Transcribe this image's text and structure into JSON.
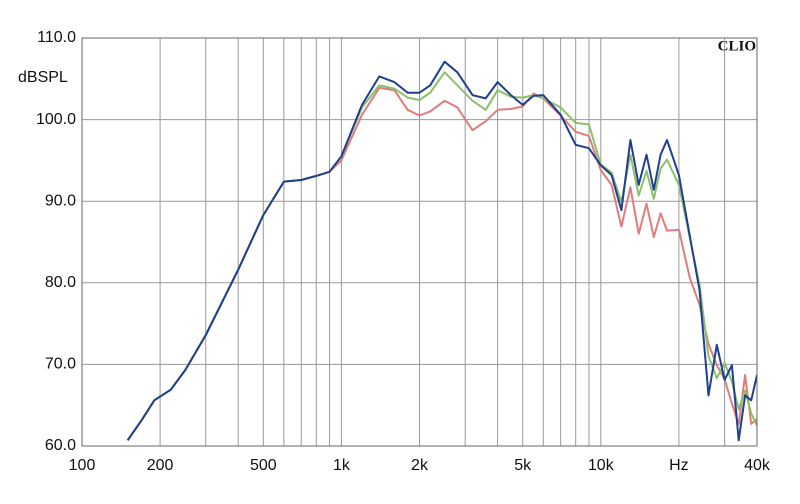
{
  "chart_data": {
    "type": "line",
    "ylabel": "dBSPL",
    "brand": "CLIO",
    "x": [
      150,
      170,
      190,
      220,
      250,
      300,
      400,
      500,
      600,
      700,
      800,
      900,
      1000,
      1200,
      1400,
      1600,
      1800,
      2000,
      2200,
      2500,
      2800,
      3200,
      3600,
      4000,
      4500,
      5000,
      5500,
      6000,
      7000,
      8000,
      9000,
      10000,
      11000,
      12000,
      13000,
      14000,
      15000,
      16000,
      17000,
      18000,
      20000,
      22000,
      24000,
      26000,
      28000,
      30000,
      32000,
      34000,
      36000,
      38000,
      40000
    ],
    "series": [
      {
        "color": "#e07c7c",
        "values": [
          60.7,
          63.2,
          65.6,
          66.9,
          69.3,
          73.6,
          81.6,
          88.3,
          92.4,
          92.6,
          93.1,
          93.6,
          95,
          100.6,
          103.9,
          103.6,
          101.2,
          100.5,
          101,
          102.3,
          101.5,
          98.7,
          99.8,
          101.2,
          101.3,
          101.6,
          103.2,
          102.6,
          100.5,
          98.5,
          98,
          93.8,
          92,
          86.9,
          91.7,
          86,
          89.7,
          85.6,
          88.5,
          86.4,
          86.5,
          80.7,
          77.3,
          72.5,
          69.9,
          68.2,
          65.2,
          62.7,
          68.7,
          62.7,
          63.3
        ]
      },
      {
        "color": "#8cbf6a",
        "values": [
          60.7,
          63.2,
          65.6,
          66.9,
          69.3,
          73.6,
          81.6,
          88.3,
          92.4,
          92.6,
          93.1,
          93.6,
          95.5,
          101.5,
          104.2,
          103.8,
          102.7,
          102.4,
          103.3,
          105.8,
          104.2,
          102.3,
          101.2,
          103.6,
          102.8,
          102.7,
          103,
          102.6,
          101.5,
          99.6,
          99.4,
          94.5,
          93.5,
          89.9,
          95.7,
          90.7,
          93.7,
          90.3,
          94,
          95.1,
          92,
          85.6,
          79.8,
          71,
          68.3,
          70.2,
          67.9,
          64.5,
          66.8,
          64,
          62.5
        ]
      },
      {
        "color": "#1f3f8f",
        "values": [
          60.7,
          63.2,
          65.6,
          66.9,
          69.3,
          73.6,
          81.6,
          88.3,
          92.4,
          92.6,
          93.1,
          93.6,
          95.5,
          101.8,
          105.3,
          104.6,
          103.3,
          103.3,
          104.2,
          107.1,
          105.8,
          103,
          102.6,
          104.6,
          103,
          101.8,
          102.9,
          103,
          100.6,
          96.9,
          96.5,
          94.4,
          93.2,
          88.9,
          97.5,
          92,
          95.7,
          91.4,
          95.7,
          97.5,
          93.2,
          85.9,
          79.1,
          66.2,
          72.4,
          68.1,
          69.9,
          60.7,
          66.2,
          65.6,
          68.7
        ]
      }
    ],
    "xscale": "log",
    "xlim": [
      100,
      40000
    ],
    "xticks": [
      100,
      200,
      500,
      {
        "value": 1000,
        "label": "1k"
      },
      {
        "value": 2000,
        "label": "2k"
      },
      {
        "value": 5000,
        "label": "5k"
      },
      {
        "value": 10000,
        "label": "10k"
      },
      {
        "value": 20000,
        "label": "Hz"
      },
      {
        "value": 40000,
        "label": "40k"
      }
    ],
    "xminor_ticks": [
      300,
      400,
      600,
      700,
      800,
      900,
      3000,
      4000,
      6000,
      7000,
      8000,
      9000,
      30000
    ],
    "ylim": [
      60,
      110
    ],
    "yticks": [
      {
        "value": 60,
        "label": "60.0"
      },
      {
        "value": 70,
        "label": "70.0"
      },
      {
        "value": 80,
        "label": "80.0"
      },
      {
        "value": 90,
        "label": "90.0"
      },
      {
        "value": 100,
        "label": "100.0"
      },
      {
        "value": 110,
        "label": "110.0"
      }
    ],
    "grid": true
  }
}
